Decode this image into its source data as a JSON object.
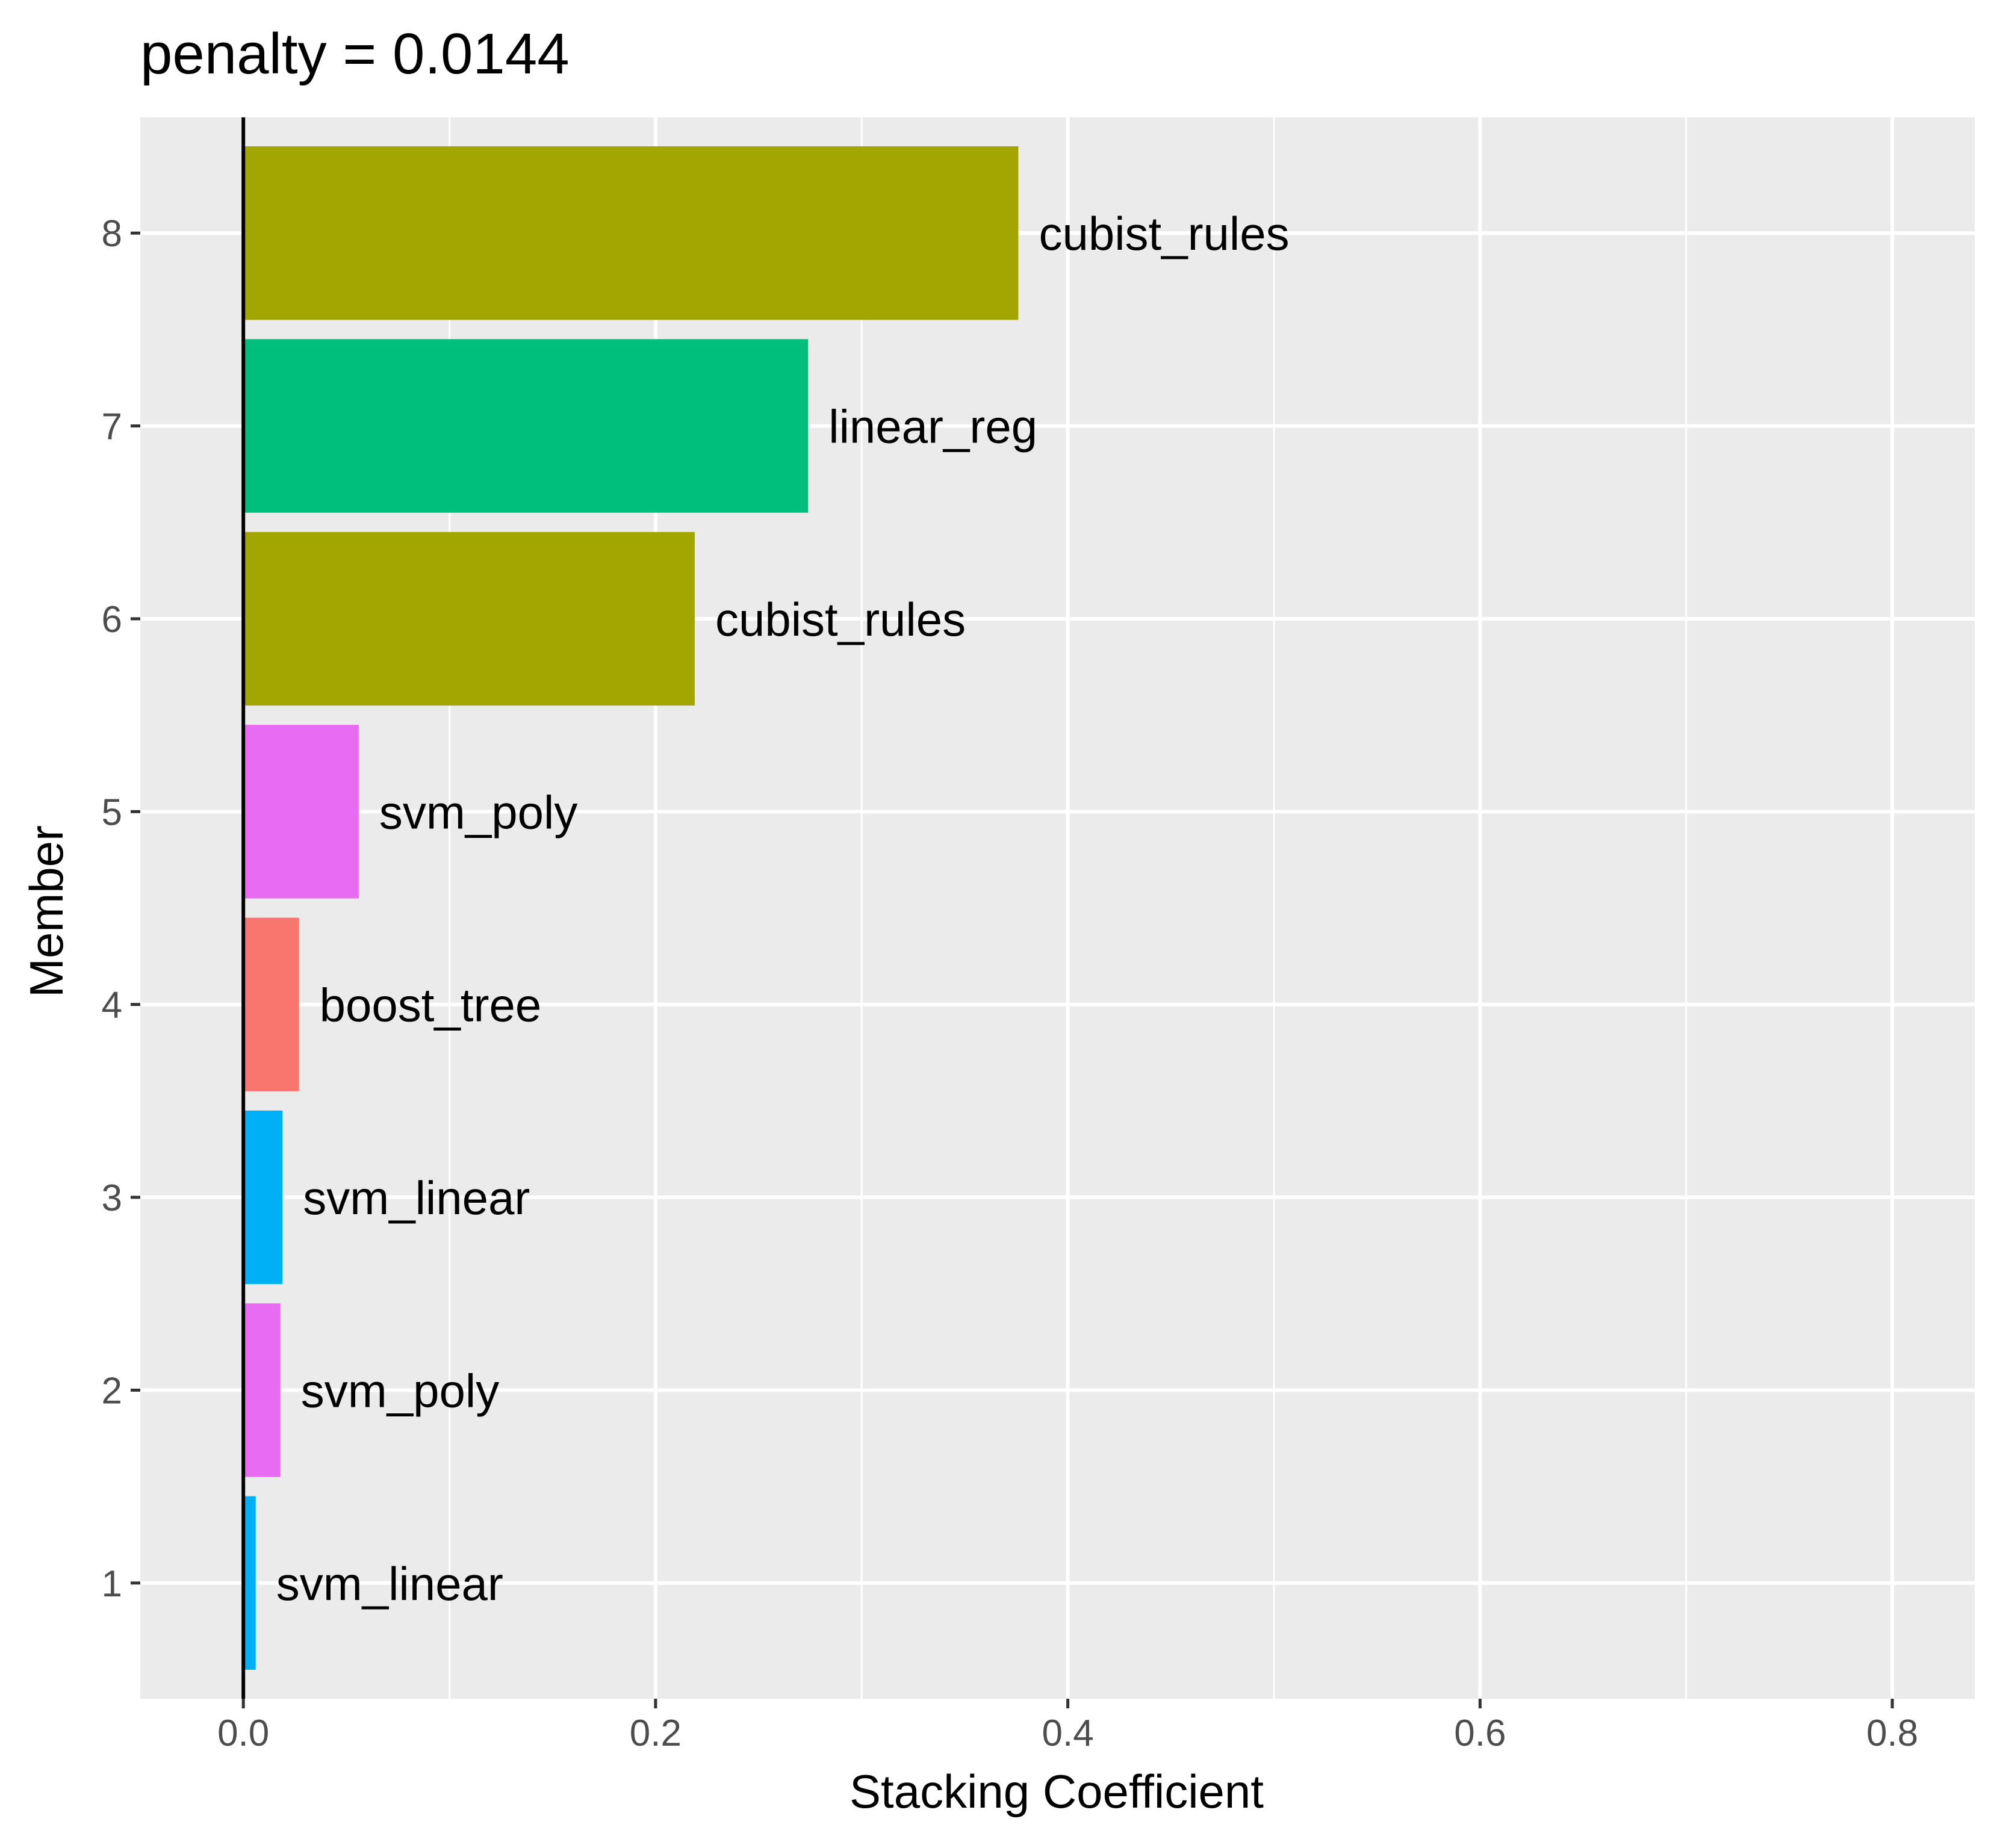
{
  "chart_data": {
    "type": "bar",
    "orientation": "horizontal",
    "title": "penalty = 0.0144",
    "xlabel": "Stacking Coefficient",
    "ylabel": "Member",
    "xlim": [
      -0.05,
      0.84
    ],
    "x_ticks": [
      "0.0",
      "0.2",
      "0.4",
      "0.6",
      "0.8"
    ],
    "x_tick_values": [
      0.0,
      0.2,
      0.4,
      0.6,
      0.8
    ],
    "categories": [
      "1",
      "2",
      "3",
      "4",
      "5",
      "6",
      "7",
      "8"
    ],
    "values": [
      0.006,
      0.018,
      0.019,
      0.027,
      0.056,
      0.219,
      0.274,
      0.376
    ],
    "bar_labels": [
      "svm_linear",
      "svm_poly",
      "svm_linear",
      "boost_tree",
      "svm_poly",
      "cubist_rules",
      "linear_reg",
      "cubist_rules"
    ],
    "colors": {
      "svm_linear": "#00B0F6",
      "svm_poly": "#E76BF3",
      "boost_tree": "#F8766D",
      "cubist_rules": "#A3A500",
      "linear_reg": "#00BF7D"
    },
    "panel_background": "#EBEBEB",
    "grid": true,
    "legend": "none"
  }
}
